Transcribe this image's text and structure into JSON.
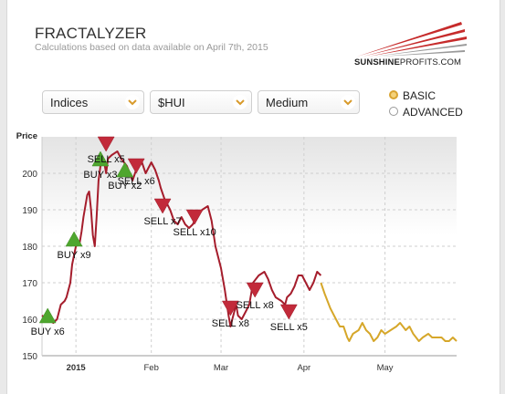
{
  "header": {
    "title": "FRACTALYZER",
    "subtitle": "Calculations based on data available on April 7th, 2015",
    "logo_bold": "SUNSHINE",
    "logo_thin": "PROFITS.COM"
  },
  "controls": {
    "market": "Indices",
    "ticker": "$HUI",
    "horizon": "Medium",
    "mode_options": [
      "BASIC",
      "ADVANCED"
    ],
    "selected_mode": "BASIC"
  },
  "colors": {
    "history": "#a51d2c",
    "projection": "#d6a72a",
    "buy": "#4ea62e",
    "sell": "#c22a3a",
    "plot_top": "#e4e4e4"
  },
  "chart_data": {
    "type": "line",
    "ylabel": "Price",
    "ylim": [
      150,
      210
    ],
    "yticks": [
      150,
      160,
      170,
      180,
      190,
      200
    ],
    "xtick_labels": [
      "2015",
      "Feb",
      "Mar",
      "Apr",
      "May"
    ],
    "x_axis": "days from start of chart",
    "series": [
      {
        "name": "history",
        "points": [
          [
            0,
            161
          ],
          [
            3,
            160
          ],
          [
            6,
            159
          ],
          [
            8,
            160
          ],
          [
            10,
            164
          ],
          [
            12,
            165
          ],
          [
            13,
            166
          ],
          [
            15,
            170
          ],
          [
            16,
            175
          ],
          [
            18,
            180
          ],
          [
            20,
            181
          ],
          [
            21,
            184
          ],
          [
            22,
            188
          ],
          [
            24,
            194
          ],
          [
            25,
            195
          ],
          [
            26,
            190
          ],
          [
            27,
            183
          ],
          [
            28,
            180
          ],
          [
            29,
            188
          ],
          [
            30,
            198
          ],
          [
            31,
            202
          ],
          [
            33,
            203
          ],
          [
            34,
            200
          ],
          [
            35,
            204
          ],
          [
            37,
            205
          ],
          [
            40,
            206
          ],
          [
            42,
            204
          ],
          [
            45,
            202
          ],
          [
            48,
            198
          ],
          [
            50,
            201
          ],
          [
            53,
            203
          ],
          [
            55,
            200
          ],
          [
            58,
            203
          ],
          [
            60,
            201
          ],
          [
            62,
            198
          ],
          [
            63,
            196
          ],
          [
            65,
            193
          ],
          [
            68,
            190
          ],
          [
            70,
            187
          ],
          [
            72,
            186
          ],
          [
            74,
            188
          ],
          [
            76,
            186
          ],
          [
            78,
            185
          ],
          [
            80,
            186
          ],
          [
            82,
            188
          ],
          [
            85,
            190
          ],
          [
            88,
            191
          ],
          [
            90,
            187
          ],
          [
            92,
            180
          ],
          [
            95,
            174
          ],
          [
            97,
            168
          ],
          [
            99,
            161
          ],
          [
            100,
            158
          ],
          [
            101,
            160
          ],
          [
            103,
            164
          ],
          [
            104,
            161
          ],
          [
            106,
            160
          ],
          [
            108,
            162
          ],
          [
            110,
            164
          ],
          [
            112,
            170
          ],
          [
            115,
            172
          ],
          [
            118,
            173
          ],
          [
            120,
            171
          ],
          [
            122,
            168
          ],
          [
            124,
            166
          ],
          [
            127,
            165
          ],
          [
            129,
            164
          ],
          [
            130,
            166
          ],
          [
            132,
            167
          ],
          [
            134,
            169
          ],
          [
            136,
            172
          ],
          [
            138,
            172
          ],
          [
            140,
            170
          ],
          [
            142,
            168
          ],
          [
            144,
            170
          ],
          [
            146,
            173
          ],
          [
            148,
            172
          ]
        ]
      },
      {
        "name": "projection",
        "points": [
          [
            148,
            170
          ],
          [
            150,
            167
          ],
          [
            153,
            163
          ],
          [
            156,
            160
          ],
          [
            158,
            158
          ],
          [
            160,
            158
          ],
          [
            162,
            155
          ],
          [
            163,
            154
          ],
          [
            165,
            156
          ],
          [
            168,
            157
          ],
          [
            170,
            159
          ],
          [
            172,
            157
          ],
          [
            174,
            156
          ],
          [
            176,
            154
          ],
          [
            178,
            155
          ],
          [
            180,
            157
          ],
          [
            182,
            156
          ],
          [
            185,
            157
          ],
          [
            188,
            158
          ],
          [
            190,
            159
          ],
          [
            193,
            157
          ],
          [
            195,
            158
          ],
          [
            197,
            156
          ],
          [
            200,
            154
          ],
          [
            202,
            155
          ],
          [
            205,
            156
          ],
          [
            207,
            155
          ],
          [
            210,
            155
          ],
          [
            212,
            155
          ],
          [
            214,
            154
          ],
          [
            216,
            154
          ],
          [
            218,
            155
          ],
          [
            220,
            154
          ]
        ]
      }
    ],
    "signals": [
      {
        "type": "buy",
        "label": "BUY x6",
        "x": 3,
        "y": 161
      },
      {
        "type": "buy",
        "label": "BUY x9",
        "x": 17,
        "y": 182
      },
      {
        "type": "buy",
        "label": "BUY x3",
        "x": 31,
        "y": 204
      },
      {
        "type": "sell",
        "label": "SELL x5",
        "x": 34,
        "y": 208
      },
      {
        "type": "buy",
        "label": "BUY x2",
        "x": 44,
        "y": 201
      },
      {
        "type": "sell",
        "label": "SELL x6",
        "x": 50,
        "y": 202
      },
      {
        "type": "sell",
        "label": "SELL x7",
        "x": 64,
        "y": 191
      },
      {
        "type": "sell",
        "label": "SELL x10",
        "x": 81,
        "y": 188
      },
      {
        "type": "sell",
        "label": "SELL x8",
        "x": 100,
        "y": 163
      },
      {
        "type": "sell",
        "label": "SELL x8",
        "x": 113,
        "y": 168
      },
      {
        "type": "sell",
        "label": "SELL x5",
        "x": 131,
        "y": 162
      }
    ]
  }
}
